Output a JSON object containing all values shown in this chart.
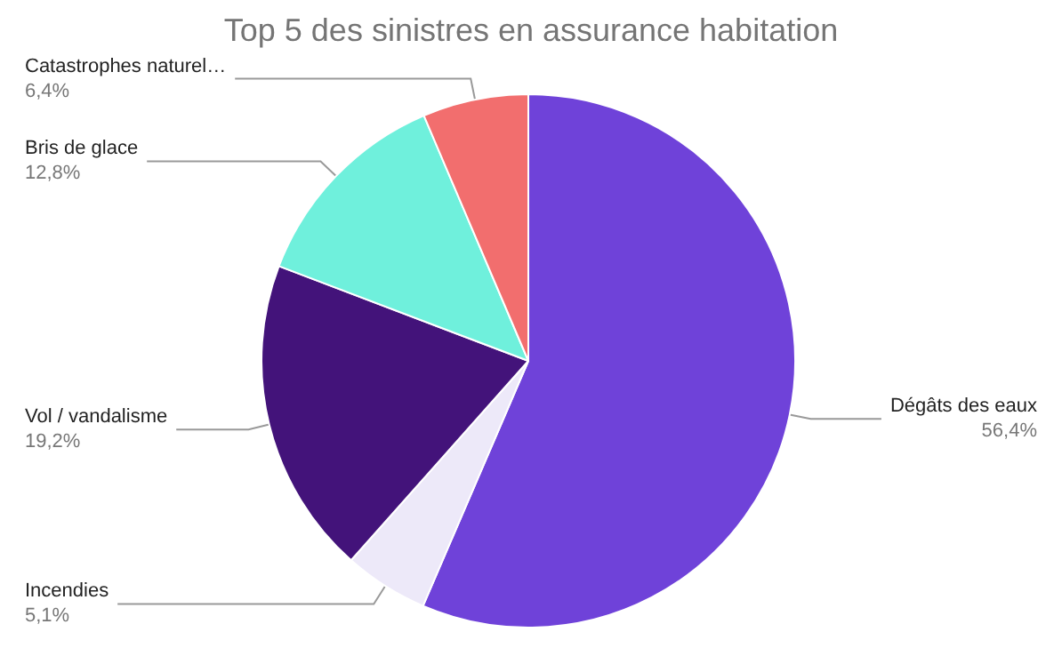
{
  "chart_data": {
    "type": "pie",
    "title": "Top 5 des sinistres en assurance habitation",
    "categories": [
      "Dégâts des eaux",
      "Incendies",
      "Vol / vandalisme",
      "Bris de glace",
      "Catastrophes naturel…"
    ],
    "values": [
      56.4,
      5.1,
      19.2,
      12.8,
      6.4
    ],
    "value_labels": [
      "56,4%",
      "5,1%",
      "19,2%",
      "12,8%",
      "6,4%"
    ],
    "colors": [
      "#6f42d9",
      "#ede9f9",
      "#43137a",
      "#6ff0dc",
      "#f26e6e"
    ],
    "legend": false
  }
}
